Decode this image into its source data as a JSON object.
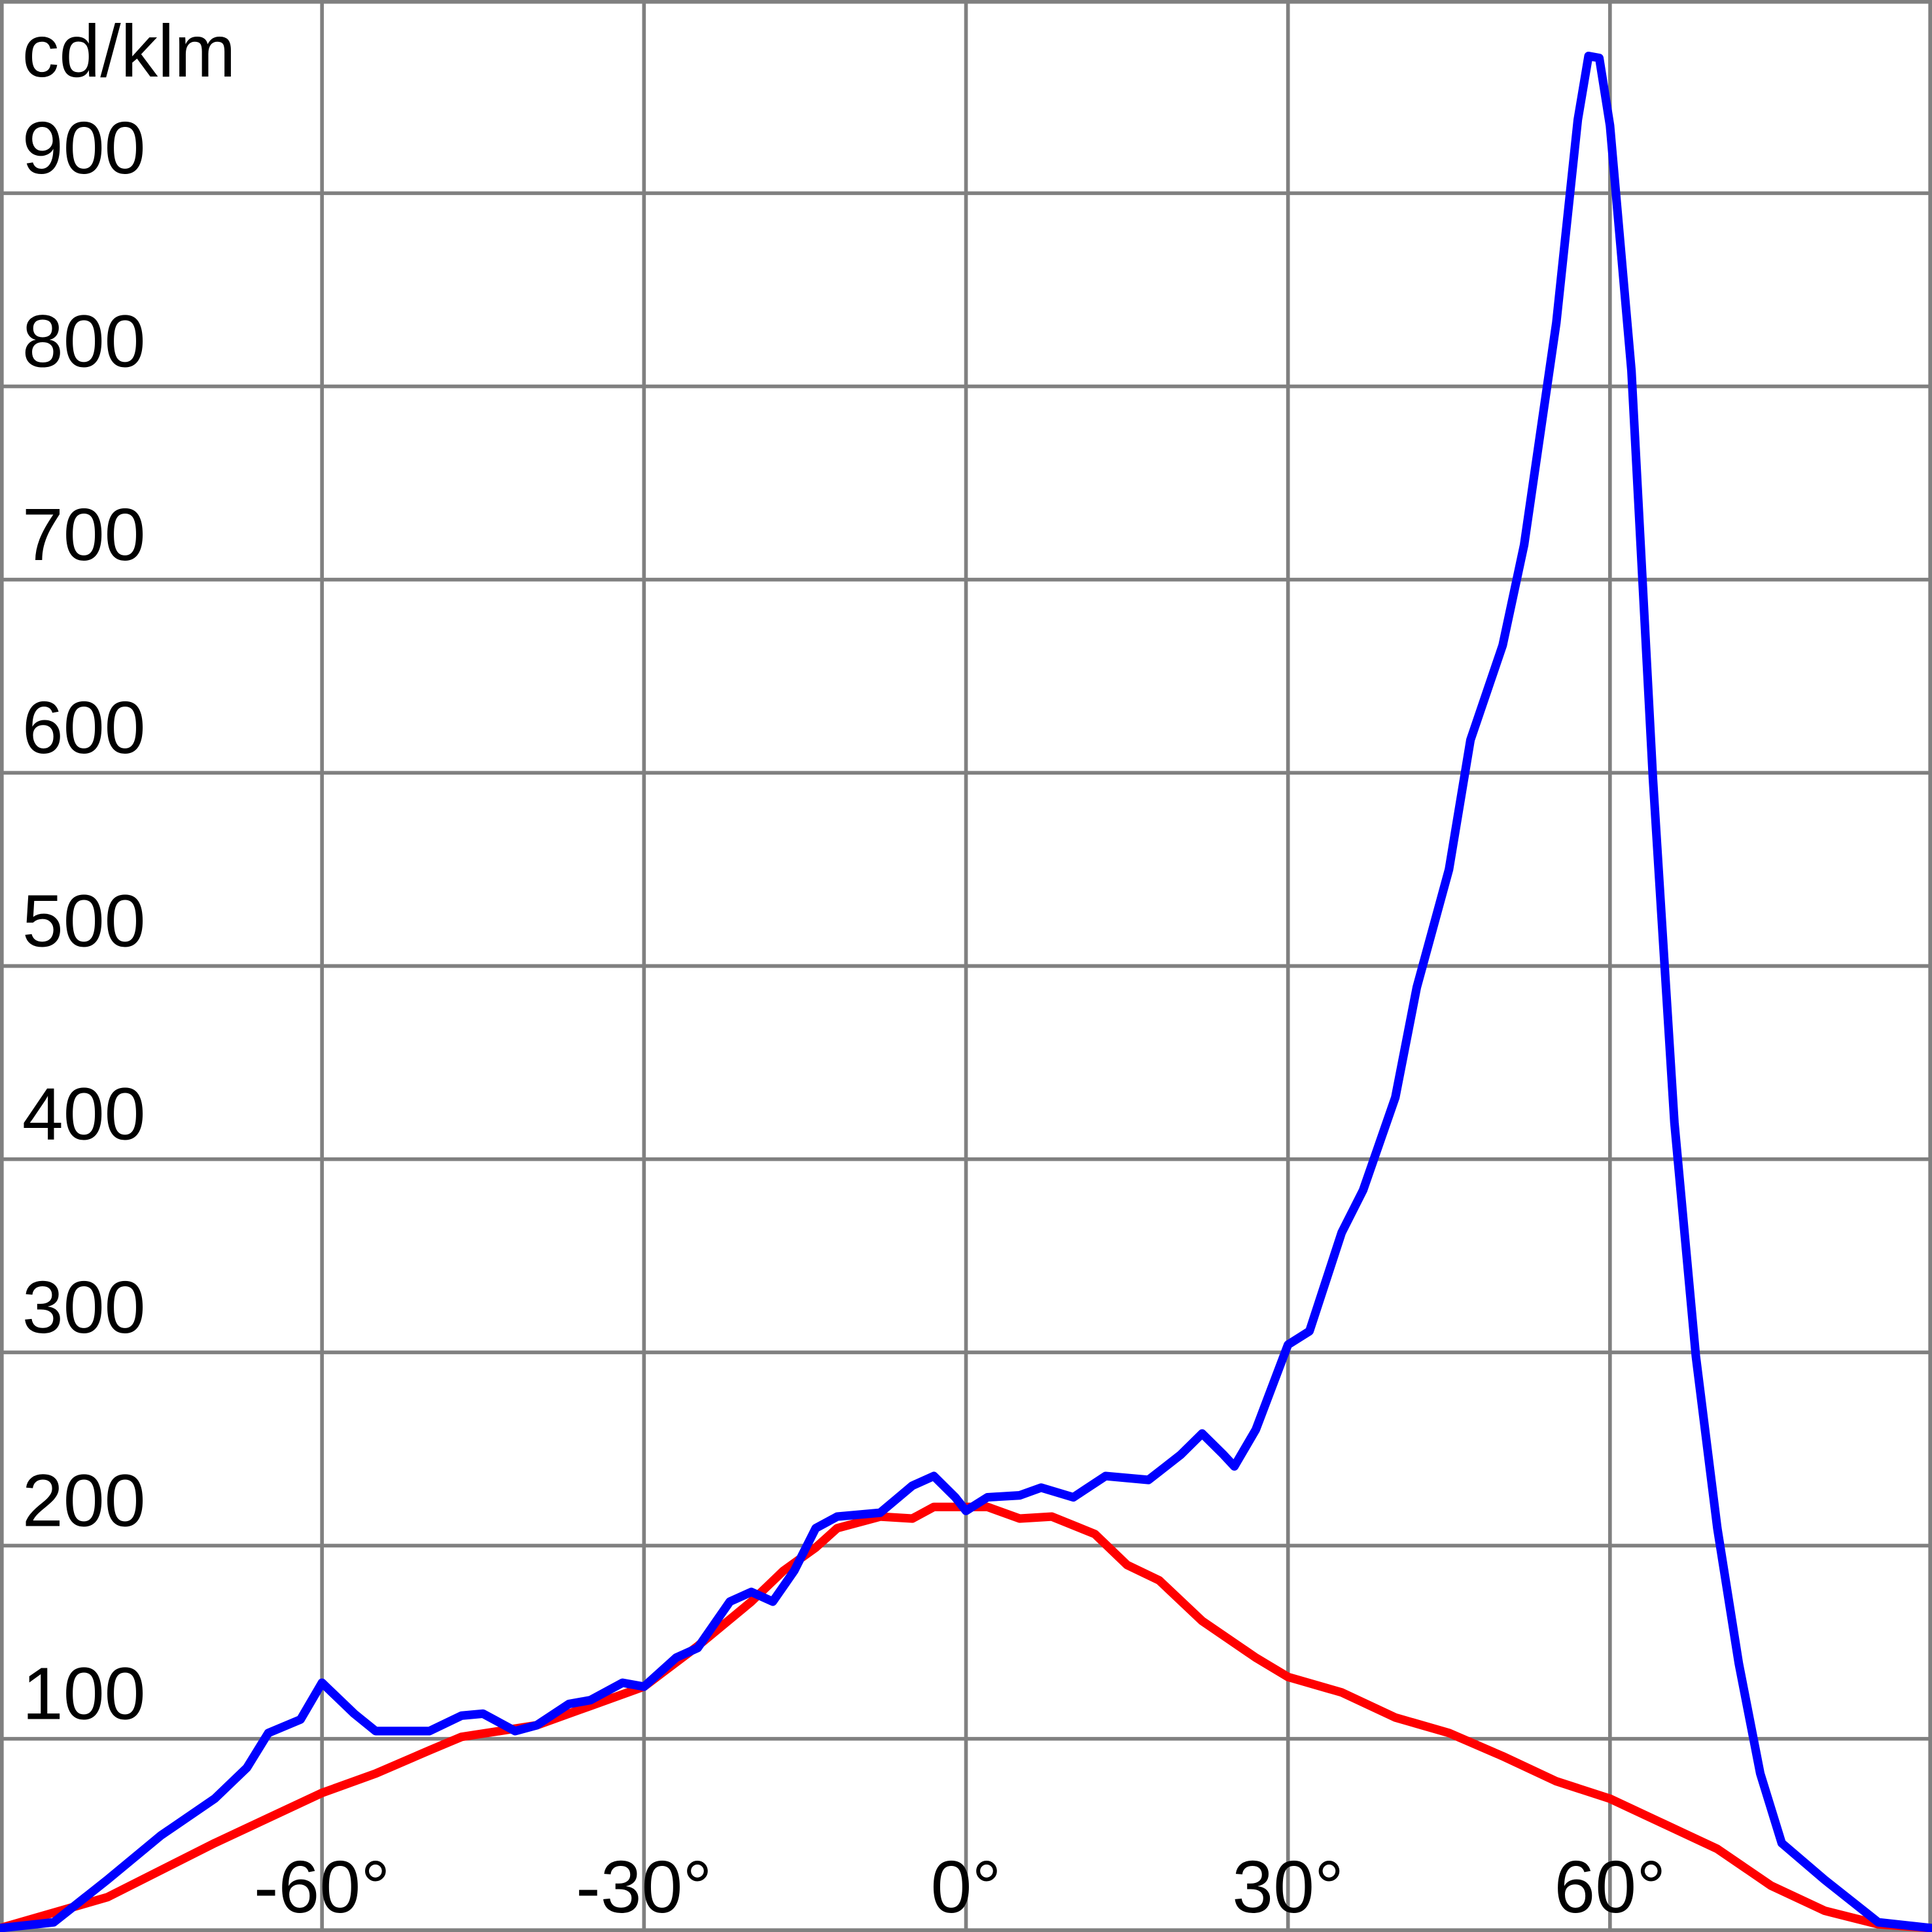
{
  "chart_data": {
    "type": "line",
    "y_label": "cd/klm",
    "xlim": [
      -90,
      90
    ],
    "ylim": [
      0,
      1000
    ],
    "xticks": [
      {
        "value": -60,
        "label": "-60°"
      },
      {
        "value": -30,
        "label": "-30°"
      },
      {
        "value": 0,
        "label": "0°"
      },
      {
        "value": 30,
        "label": "30°"
      },
      {
        "value": 60,
        "label": "60°"
      }
    ],
    "yticks": [
      100,
      200,
      300,
      400,
      500,
      600,
      700,
      800,
      900
    ],
    "grid": true,
    "series": [
      {
        "color": "#ff0000",
        "x": [
          -90,
          -80,
          -70,
          -65,
          -60,
          -55,
          -50,
          -47,
          -40,
          -35,
          -30,
          -25,
          -20,
          -17,
          -14,
          -12,
          -8,
          -5,
          -3,
          0,
          2,
          5,
          8,
          12,
          15,
          18,
          22,
          27,
          30,
          35,
          40,
          45,
          50,
          55,
          60,
          65,
          70,
          75,
          80,
          85,
          90
        ],
        "values": [
          2,
          18,
          46,
          59,
          72,
          82,
          94,
          101,
          107,
          117,
          127,
          148,
          171,
          187,
          199,
          209,
          215,
          214,
          220,
          220,
          220,
          214,
          215,
          206,
          190,
          182,
          161,
          142,
          132,
          124,
          111,
          103,
          91,
          78,
          69,
          56,
          43,
          24,
          11,
          4,
          2
        ]
      },
      {
        "color": "#0000ff",
        "x": [
          -90,
          -85,
          -80,
          -75,
          -70,
          -67,
          -65,
          -62,
          -60,
          -57,
          -55,
          -50,
          -47,
          -45,
          -42,
          -40,
          -37,
          -35,
          -32,
          -30,
          -27,
          -25,
          -22,
          -20,
          -18,
          -16,
          -14,
          -12,
          -8,
          -5,
          -3,
          -1,
          0,
          2,
          5,
          7,
          10,
          13,
          17,
          20,
          22,
          24,
          25,
          27,
          30,
          32,
          35,
          37,
          40,
          42,
          45,
          47,
          50,
          52,
          55,
          57,
          58,
          59,
          60,
          62,
          64,
          66,
          68,
          70,
          72,
          74,
          76,
          80,
          85,
          90
        ],
        "values": [
          2,
          5,
          27,
          50,
          69,
          85,
          103,
          110,
          129,
          113,
          104,
          104,
          112,
          113,
          104,
          107,
          118,
          120,
          129,
          127,
          142,
          147,
          171,
          176,
          171,
          187,
          209,
          215,
          217,
          231,
          236,
          225,
          218,
          225,
          226,
          230,
          225,
          236,
          234,
          247,
          258,
          247,
          241,
          260,
          304,
          311,
          362,
          384,
          432,
          489,
          550,
          617,
          666,
          718,
          833,
          938,
          971,
          970,
          935,
          808,
          597,
          419,
          298,
          209,
          139,
          82,
          46,
          27,
          5,
          2
        ]
      }
    ]
  }
}
